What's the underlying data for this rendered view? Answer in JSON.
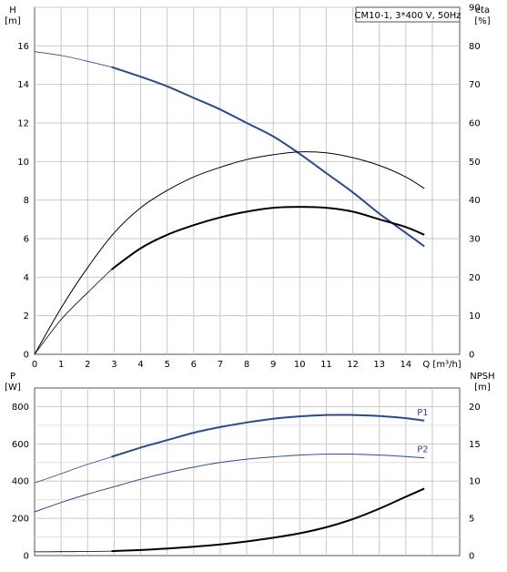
{
  "chart_data": [
    {
      "type": "line",
      "legend": "CM10-1, 3*400 V, 50Hz",
      "xlabel": "Q [m³/h]",
      "xlim": [
        0,
        15
      ],
      "x_ticks": [
        "0",
        "1",
        "2",
        "3",
        "4",
        "5",
        "6",
        "7",
        "8",
        "9",
        "10",
        "11",
        "12",
        "13",
        "14"
      ],
      "y_left": {
        "label_top": "H",
        "label_unit": "[m]",
        "lim": [
          0,
          18
        ],
        "ticks": [
          "0",
          "2",
          "4",
          "6",
          "8",
          "10",
          "12",
          "14",
          "16"
        ]
      },
      "y_right": {
        "label_top": "eta",
        "label_unit": "[%]",
        "lim": [
          0,
          90
        ],
        "ticks": [
          "0",
          "10",
          "20",
          "30",
          "40",
          "50",
          "60",
          "70",
          "80",
          "90"
        ]
      },
      "series": [
        {
          "axis": "left",
          "color": "#2b4a8c",
          "style": "thin-then-bold",
          "bold_from": 2.9,
          "x": [
            0,
            1,
            2,
            2.9,
            4,
            5,
            6,
            7,
            8,
            9,
            10,
            11,
            12,
            13,
            14,
            14.7
          ],
          "y": [
            15.7,
            15.5,
            15.2,
            14.9,
            14.4,
            13.9,
            13.3,
            12.7,
            12.0,
            11.3,
            10.4,
            9.4,
            8.4,
            7.3,
            6.3,
            5.6
          ]
        },
        {
          "axis": "left",
          "color": "#000000",
          "style": "thin",
          "x": [
            0,
            1,
            2,
            3,
            4,
            5,
            6,
            7,
            8,
            9,
            10,
            11,
            12,
            13,
            14,
            14.7
          ],
          "y": [
            0,
            2.4,
            4.5,
            6.3,
            7.6,
            8.5,
            9.2,
            9.7,
            10.1,
            10.35,
            10.5,
            10.45,
            10.2,
            9.8,
            9.2,
            8.6
          ]
        },
        {
          "axis": "left",
          "color": "#000000",
          "style": "thin-then-bold",
          "bold_from": 2.9,
          "x": [
            0,
            1,
            2,
            2.9,
            4,
            5,
            6,
            7,
            8,
            9,
            10,
            11,
            12,
            13,
            14,
            14.7
          ],
          "y": [
            0,
            1.8,
            3.2,
            4.4,
            5.5,
            6.2,
            6.7,
            7.1,
            7.4,
            7.6,
            7.65,
            7.6,
            7.4,
            7.0,
            6.6,
            6.2
          ]
        }
      ]
    },
    {
      "type": "line",
      "xlim": [
        0,
        15
      ],
      "y_left": {
        "label_top": "P",
        "label_unit": "[W]",
        "lim": [
          0,
          900
        ],
        "ticks": [
          "0",
          "200",
          "400",
          "600",
          "800"
        ]
      },
      "y_right": {
        "label_top": "NPSH",
        "label_unit": "[m]",
        "lim": [
          0,
          22.5
        ],
        "ticks": [
          "0",
          "5",
          "10",
          "15",
          "20"
        ]
      },
      "series": [
        {
          "name": "P1",
          "axis": "left",
          "color": "#2b4a8c",
          "style": "thin-then-bold",
          "bold_from": 2.9,
          "x": [
            0,
            1,
            2,
            2.9,
            4,
            5,
            6,
            7,
            8,
            9,
            10,
            11,
            12,
            13,
            14,
            14.7
          ],
          "y": [
            390,
            440,
            490,
            530,
            580,
            620,
            660,
            690,
            715,
            735,
            748,
            755,
            755,
            750,
            738,
            725
          ]
        },
        {
          "name": "P2",
          "axis": "left",
          "color": "#2b4a8c",
          "style": "thin",
          "x": [
            0,
            1,
            2,
            3,
            4,
            5,
            6,
            7,
            8,
            9,
            10,
            11,
            12,
            13,
            14,
            14.7
          ],
          "y": [
            235,
            285,
            330,
            370,
            410,
            445,
            475,
            500,
            518,
            530,
            540,
            545,
            545,
            540,
            532,
            525
          ]
        },
        {
          "axis": "right",
          "color": "#000000",
          "style": "thin-then-bold",
          "bold_from": 2.9,
          "x": [
            0,
            1,
            2,
            2.9,
            4,
            5,
            6,
            7,
            8,
            9,
            10,
            11,
            12,
            13,
            14,
            14.7
          ],
          "y": [
            0.5,
            0.52,
            0.55,
            0.6,
            0.75,
            0.95,
            1.2,
            1.5,
            1.9,
            2.4,
            3.0,
            3.8,
            4.9,
            6.3,
            7.9,
            9.0
          ]
        }
      ]
    }
  ]
}
